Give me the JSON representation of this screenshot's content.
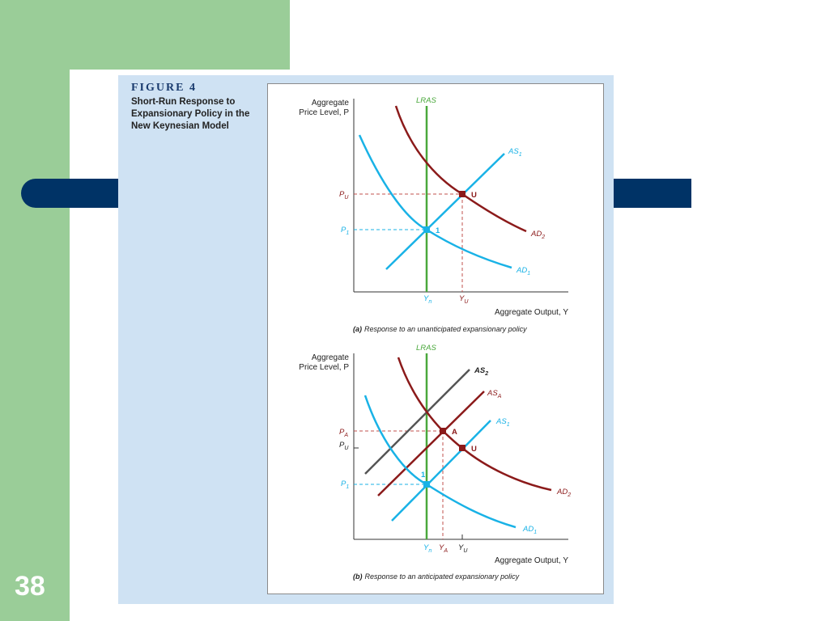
{
  "slide": {
    "page_number": "38"
  },
  "figure": {
    "label": "FIGURE 4",
    "caption": "Short-Run Response to\nExpansionary Policy in the\nNew Keynesian Model"
  },
  "panel_a": {
    "y_axis_line1": "Aggregate",
    "y_axis_line2": "Price Level, P",
    "x_axis": "Aggregate Output, Y",
    "subcaption_tag": "(a)",
    "subcaption": "Response to an unanticipated expansionary policy",
    "curves": {
      "lras": "LRAS",
      "as1": "AS",
      "as1_sub": "1",
      "ad1": "AD",
      "ad1_sub": "1",
      "ad2": "AD",
      "ad2_sub": "2"
    },
    "points": {
      "u": "U",
      "one": "1"
    },
    "ticks": {
      "pu": "P",
      "pu_sub": "U",
      "p1": "P",
      "p1_sub": "1",
      "yn": "Y",
      "yn_sub": "n",
      "yu": "Y",
      "yu_sub": "U"
    }
  },
  "panel_b": {
    "y_axis_line1": "Aggregate",
    "y_axis_line2": "Price Level, P",
    "x_axis": "Aggregate Output, Y",
    "subcaption_tag": "(b)",
    "subcaption": "Response to an anticipated expansionary policy",
    "curves": {
      "lras": "LRAS",
      "as2": "AS",
      "as2_sub": "2",
      "asa": "AS",
      "asa_sub": "A",
      "as1": "AS",
      "as1_sub": "1",
      "ad1": "AD",
      "ad1_sub": "1",
      "ad2": "AD",
      "ad2_sub": "2"
    },
    "points": {
      "a": "A",
      "u": "U",
      "one": "1"
    },
    "ticks": {
      "pa": "P",
      "pa_sub": "A",
      "pu": "P",
      "pu_sub": "U",
      "p1": "P",
      "p1_sub": "1",
      "yn": "Y",
      "yn_sub": "n",
      "ya": "Y",
      "ya_sub": "A",
      "yu": "Y",
      "yu_sub": "U"
    }
  },
  "colors": {
    "lras": "#4aa83c",
    "as": "#19b2e6",
    "ad2": "#8b1a1a",
    "as2": "#555555",
    "dashed_red": "#c0504d",
    "dashed_blue": "#19b2e6"
  }
}
